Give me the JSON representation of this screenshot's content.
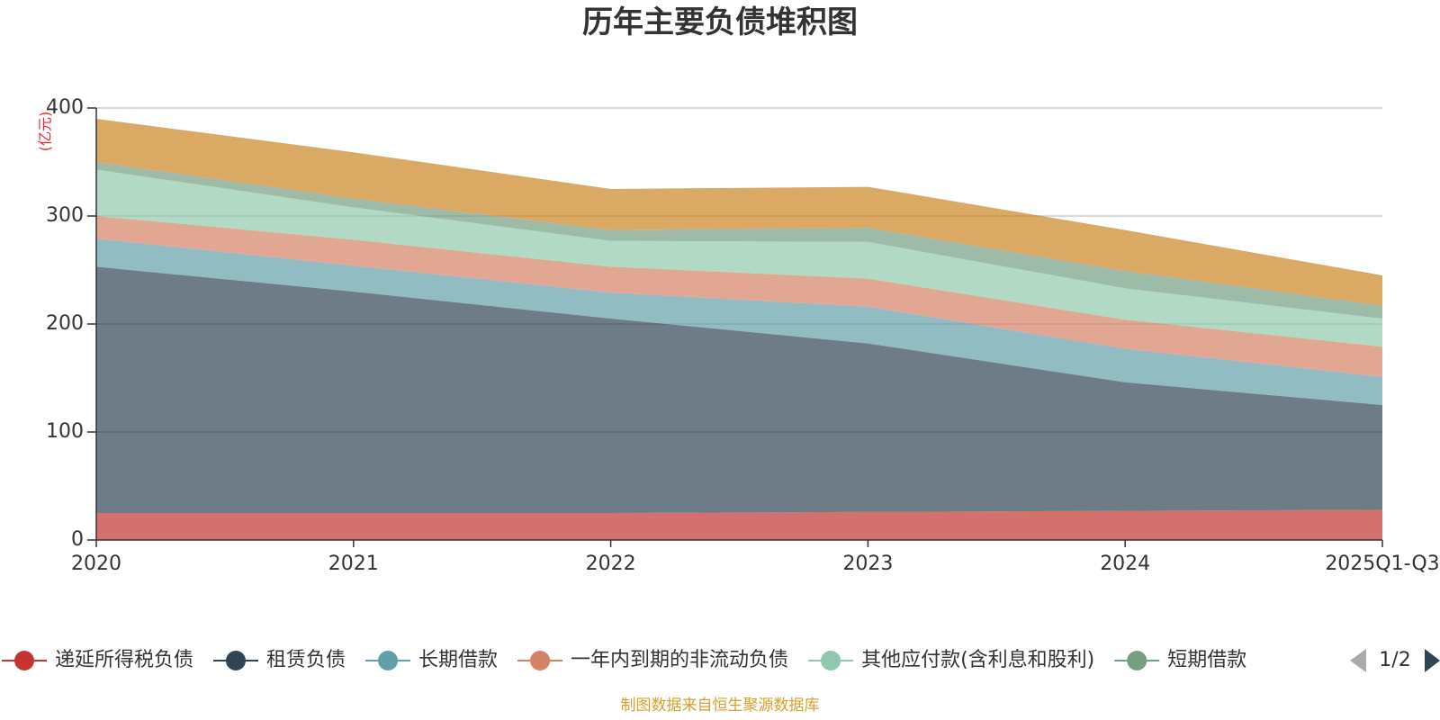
{
  "chart_data": {
    "type": "area",
    "stacked": true,
    "title": "历年主要负债堆积图",
    "unit_label": "(亿元)",
    "categories": [
      "2020",
      "2021",
      "2022",
      "2023",
      "2024",
      "2025Q1-Q3"
    ],
    "ylim": [
      0,
      400
    ],
    "yticks": [
      "0",
      "100",
      "200",
      "300",
      "400"
    ],
    "grid": true,
    "series": [
      {
        "name": "递延所得税负债",
        "color": "#c23531",
        "values": [
          25,
          25,
          25,
          26,
          27,
          28
        ]
      },
      {
        "name": "租赁负债",
        "color": "#2f4554",
        "values": [
          228,
          205,
          180,
          156,
          119,
          97
        ]
      },
      {
        "name": "长期借款",
        "color": "#61a0a8",
        "values": [
          26,
          24,
          24,
          34,
          31,
          26
        ]
      },
      {
        "name": "一年内到期的非流动负债",
        "color": "#d48265",
        "values": [
          21,
          24,
          24,
          26,
          27,
          28
        ]
      },
      {
        "name": "其他应付款(含利息和股利)",
        "color": "#91c7ae",
        "values": [
          43,
          30,
          24,
          34,
          29,
          26
        ]
      },
      {
        "name": "短期借款",
        "color": "#749f83",
        "values": [
          7,
          8,
          10,
          13,
          16,
          12
        ]
      },
      {
        "name": "",
        "color": "#ca8622",
        "values": [
          40,
          43,
          38,
          38,
          38,
          28
        ]
      }
    ],
    "legend": {
      "items": [
        "递延所得税负债",
        "租赁负债",
        "长期借款",
        "一年内到期的非流动负债",
        "其他应付款(含利息和股利)",
        "短期借款"
      ],
      "page": "1/2",
      "placement": "bottom"
    },
    "source": "制图数据来自恒生聚源数据库"
  }
}
